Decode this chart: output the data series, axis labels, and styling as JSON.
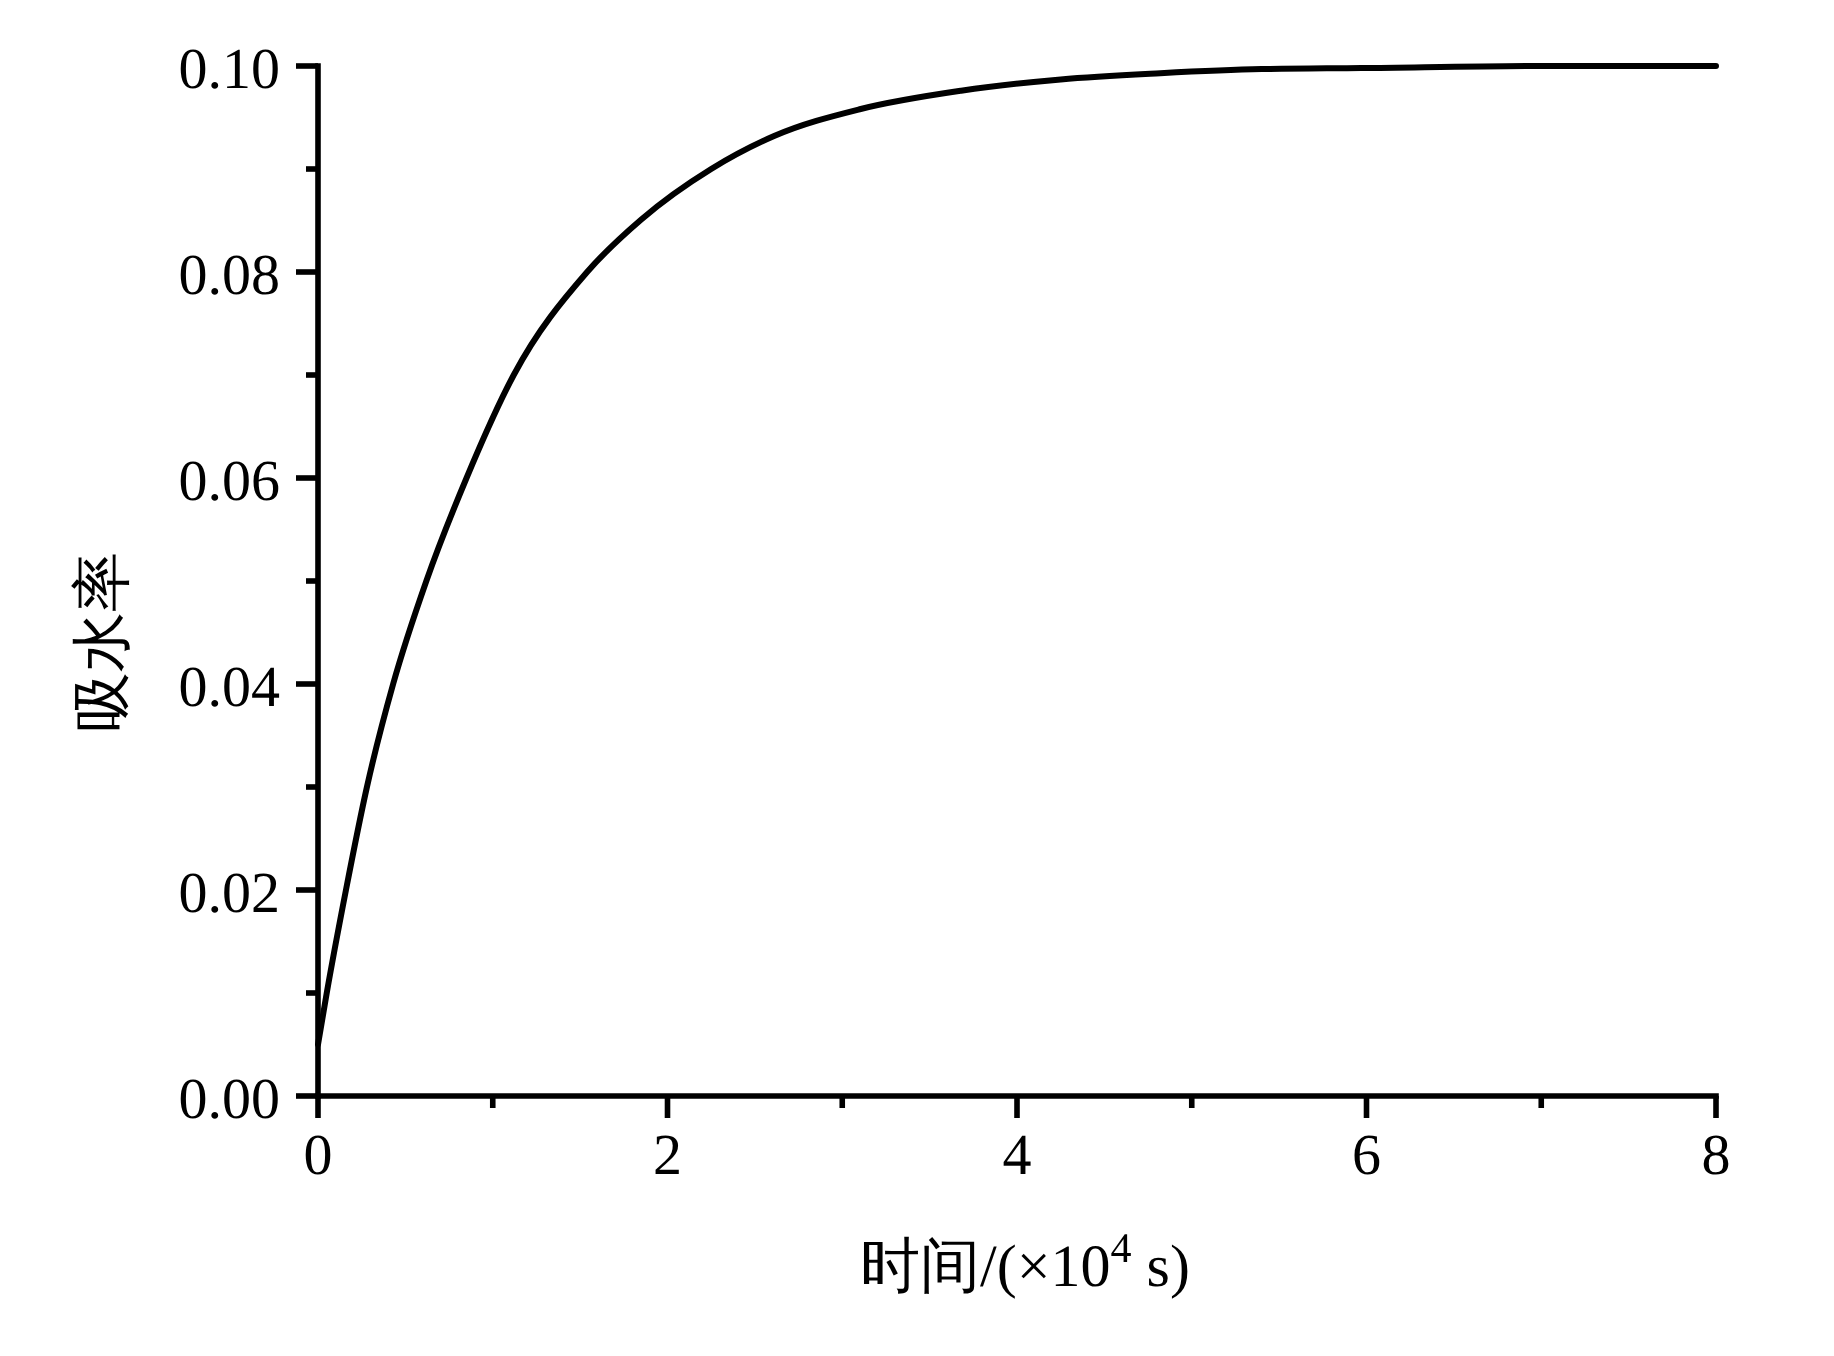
{
  "chart_data": {
    "type": "line",
    "xlabel": "时间/(×10$^{4}$ s)",
    "ylabel": "吸水率",
    "x": [
      0,
      0.05,
      0.16,
      0.28,
      0.43,
      0.62,
      0.85,
      1.12,
      1.54,
      1.85,
      2.25,
      2.61,
      3.1,
      3.68,
      4.25,
      4.82,
      5.4,
      5.97,
      7,
      8
    ],
    "values": [
      0.005,
      0.01,
      0.02,
      0.03,
      0.04,
      0.05,
      0.06,
      0.07,
      0.08,
      0.0851,
      0.09,
      0.0932,
      0.0958,
      0.0976,
      0.0987,
      0.0993,
      0.0997,
      0.0998,
      0.1,
      0.1
    ],
    "color": "#000000",
    "xlim": [
      0,
      8
    ],
    "ylim": [
      0,
      0.1
    ],
    "xticks": [
      0,
      {
        "value": 1,
        "label": null
      },
      2,
      {
        "value": 3,
        "label": null
      },
      4,
      {
        "value": 5,
        "label": null
      },
      6,
      {
        "value": 7,
        "label": null
      },
      8
    ],
    "yticks": [
      {
        "value": 0,
        "label": "0.00"
      },
      {
        "value": 0.01,
        "label": null
      },
      {
        "value": 0.02,
        "label": "0.02"
      },
      {
        "value": 0.03,
        "label": null
      },
      {
        "value": 0.04,
        "label": "0.04"
      },
      {
        "value": 0.05,
        "label": null
      },
      {
        "value": 0.06,
        "label": "0.06"
      },
      {
        "value": 0.07,
        "label": null
      },
      {
        "value": 0.08,
        "label": "0.08"
      },
      {
        "value": 0.09,
        "label": null
      },
      {
        "value": 0.1,
        "label": "0.10"
      }
    ]
  }
}
